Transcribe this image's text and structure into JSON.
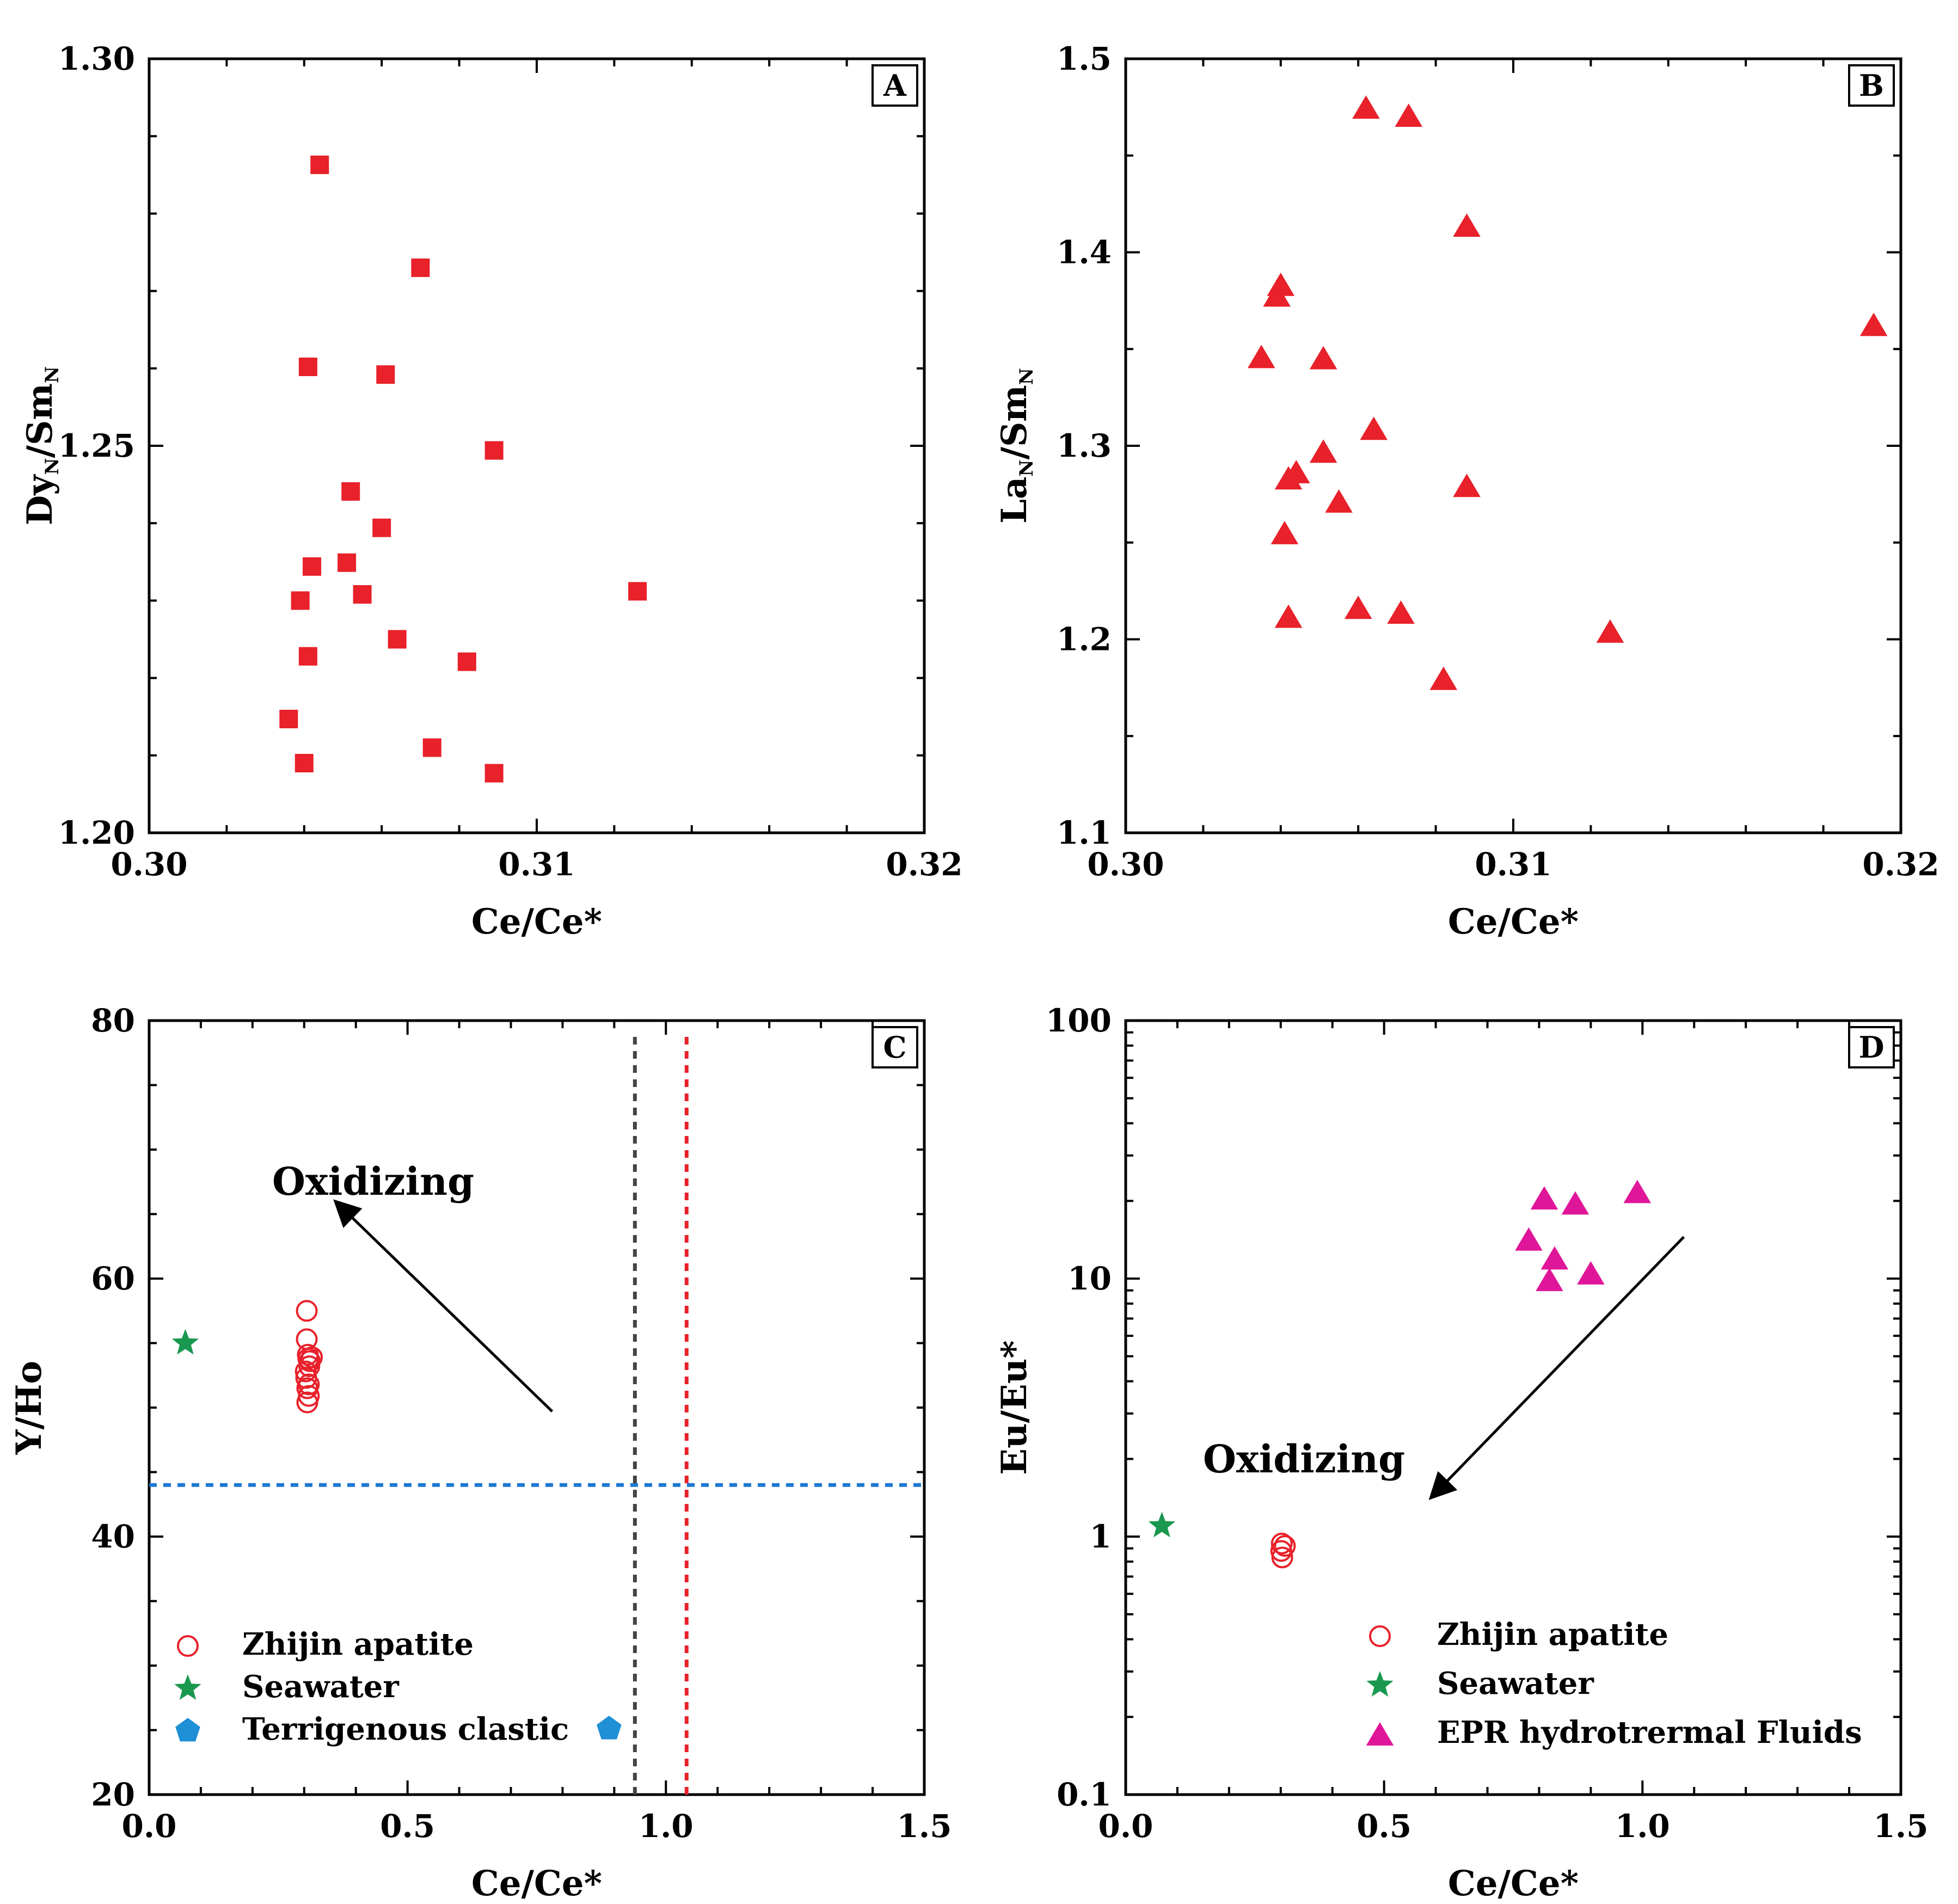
{
  "chart_data": [
    {
      "panel": "A",
      "type": "scatter",
      "xlabel": "Ce/Ce*",
      "ylabel": {
        "main1": "Dy",
        "sub1": "N",
        "main2": "/Sm",
        "sub2": "N"
      },
      "xlim": [
        0.3,
        0.32
      ],
      "ylim": [
        1.2,
        1.3
      ],
      "xticks": [
        "0.30",
        "0.31",
        "0.32"
      ],
      "yticks": [
        "1.20",
        "1.25",
        "1.30"
      ],
      "series": [
        {
          "marker": "square",
          "color": "#e8212a",
          "x": [
            0.3044,
            0.307,
            0.3041,
            0.3061,
            0.3089,
            0.3052,
            0.306,
            0.3042,
            0.3051,
            0.3039,
            0.3055,
            0.3064,
            0.3041,
            0.3082,
            0.3126,
            0.3036,
            0.3073,
            0.304,
            0.3089
          ],
          "y": [
            1.2863,
            1.273,
            1.2602,
            1.2592,
            1.2494,
            1.2441,
            1.2394,
            1.2344,
            1.2349,
            1.23,
            1.2308,
            1.225,
            1.2228,
            1.2221,
            1.2312,
            1.2147,
            1.211,
            1.209,
            1.2077
          ]
        }
      ]
    },
    {
      "panel": "B",
      "type": "scatter",
      "xlabel": "Ce/Ce*",
      "ylabel": {
        "main1": "La",
        "sub1": "N",
        "main2": "/Sm",
        "sub2": "N"
      },
      "xlim": [
        0.3,
        0.32
      ],
      "ylim": [
        1.1,
        1.5
      ],
      "xticks": [
        "0.30",
        "0.31",
        "0.32"
      ],
      "yticks": [
        "1.1",
        "1.2",
        "1.3",
        "1.4",
        "1.5"
      ],
      "series": [
        {
          "marker": "triangle",
          "color": "#e8212a",
          "x": [
            0.3062,
            0.3073,
            0.3088,
            0.304,
            0.3039,
            0.3193,
            0.3035,
            0.3051,
            0.3064,
            0.3051,
            0.3044,
            0.3042,
            0.3055,
            0.3088,
            0.3041,
            0.306,
            0.3071,
            0.3042,
            0.3125,
            0.3082
          ],
          "y": [
            1.4749,
            1.4707,
            1.4139,
            1.3833,
            1.3778,
            1.3626,
            1.346,
            1.3454,
            1.3089,
            1.2971,
            1.2865,
            1.2833,
            1.2713,
            1.2794,
            1.255,
            1.2164,
            1.2139,
            1.2118,
            1.2041,
            1.1797
          ]
        }
      ]
    },
    {
      "panel": "C",
      "type": "scatter",
      "xlabel": "Ce/Ce*",
      "ylabel": "Y/Ho",
      "xlim": [
        0,
        1.5
      ],
      "ylim": [
        20,
        80
      ],
      "xticks": [
        "0.0",
        "0.5",
        "1.0",
        "1.5"
      ],
      "yticks": [
        "20",
        "40",
        "60",
        "80"
      ],
      "reference_lines": [
        {
          "orientation": "horizontal",
          "value": 44,
          "color": "#1f78d1"
        },
        {
          "orientation": "vertical",
          "value": 0.94,
          "color": "#444444"
        },
        {
          "orientation": "vertical",
          "value": 1.04,
          "color": "#e8212a"
        }
      ],
      "annotation": {
        "text": "Oxidizing",
        "arrow_from": [
          0.78,
          49.7
        ],
        "arrow_to": [
          0.36,
          66.0
        ]
      },
      "series": [
        {
          "name": "Zhijin apatite",
          "marker": "open-circle",
          "color": "#e8212a",
          "x": [
            0.305,
            0.305,
            0.307,
            0.308,
            0.311,
            0.315,
            0.31,
            0.303,
            0.304,
            0.309,
            0.306,
            0.309,
            0.306
          ],
          "y": [
            57.5,
            55.3,
            54.1,
            53.8,
            53.6,
            53.9,
            53.2,
            52.8,
            52.3,
            51.8,
            51.5,
            50.9,
            50.4
          ]
        },
        {
          "name": "Seawater",
          "marker": "star",
          "color": "#1a9850",
          "x": [
            0.07
          ],
          "y": [
            55.0
          ]
        },
        {
          "name": "Terrigenous clastic",
          "marker": "pentagon",
          "color": "#1f8fd6",
          "x": [
            0.89
          ],
          "y": [
            25.1
          ]
        }
      ]
    },
    {
      "panel": "D",
      "type": "scatter",
      "xlabel": "Ce/Ce*",
      "ylabel": "Eu/Eu*",
      "xscale": "log-y",
      "xlim": [
        0,
        1.5
      ],
      "ylim": [
        0.1,
        100
      ],
      "xticks": [
        "0.0",
        "0.5",
        "1.0",
        "1.5"
      ],
      "yticks": [
        "0.1",
        "1",
        "10",
        "100"
      ],
      "annotation": {
        "text": "Oxidizing",
        "arrow_from": [
          1.08,
          14.5
        ],
        "arrow_to": [
          0.59,
          1.41
        ]
      },
      "series": [
        {
          "name": "Zhijin apatite",
          "marker": "open-circle",
          "color": "#e8212a",
          "x": [
            0.302,
            0.308,
            0.301,
            0.303
          ],
          "y": [
            0.94,
            0.92,
            0.88,
            0.83
          ]
        },
        {
          "name": "Seawater",
          "marker": "star",
          "color": "#1a9850",
          "x": [
            0.07
          ],
          "y": [
            1.1
          ]
        },
        {
          "name": "EPR hydrotrermal Fluids",
          "marker": "triangle",
          "color": "#e0169a",
          "x": [
            0.81,
            0.87,
            0.99,
            0.78,
            0.83,
            0.9,
            0.82
          ],
          "y": [
            20.5,
            19.6,
            21.7,
            14.2,
            12.0,
            10.5,
            9.9
          ]
        }
      ]
    }
  ]
}
